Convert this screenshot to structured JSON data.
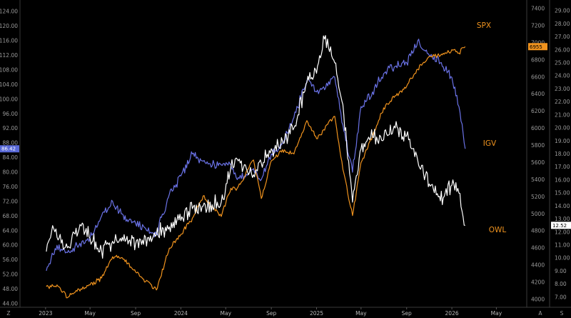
{
  "chart_data": {
    "type": "line",
    "title": "",
    "xlabel": "",
    "ylabel": "",
    "x_ticks": [
      "2023",
      "May",
      "Sep",
      "2024",
      "May",
      "Sep",
      "2025",
      "May",
      "Sep",
      "2026",
      "May"
    ],
    "x_tick_dates": [
      "2023-01-01",
      "2023-05-01",
      "2023-09-01",
      "2024-01-01",
      "2024-05-01",
      "2024-09-01",
      "2025-01-01",
      "2025-05-01",
      "2025-09-01",
      "2026-01-01",
      "2026-05-01"
    ],
    "axis_corner_labels": {
      "left": "Z",
      "right_a": "A",
      "right_b": "S"
    },
    "left_axis": {
      "range": [
        44,
        126
      ],
      "ticks": [
        "124.00",
        "120.00",
        "116.00",
        "112.00",
        "108.00",
        "104.00",
        "100.00",
        "96.00",
        "92.00",
        "88.00",
        "84.00",
        "80.00",
        "76.00",
        "72.00",
        "68.00",
        "64.00",
        "60.00",
        "56.00",
        "52.00",
        "48.00",
        "44.00"
      ],
      "last_value": "86.42"
    },
    "mid_axis": {
      "range": [
        3950,
        7450
      ],
      "ticks": [
        "7400",
        "7200",
        "7000",
        "6800",
        "6600",
        "6400",
        "6200",
        "6000",
        "5800",
        "5600",
        "5400",
        "5200",
        "5000",
        "4800",
        "4600",
        "4400",
        "4200",
        "4000"
      ],
      "last_value": "6955"
    },
    "right_axis": {
      "range": [
        6.5,
        29.5
      ],
      "ticks": [
        "29.00",
        "28.00",
        "27.00",
        "26.00",
        "25.00",
        "24.00",
        "23.00",
        "22.00",
        "21.00",
        "20.00",
        "19.00",
        "18.00",
        "17.00",
        "16.00",
        "15.00",
        "14.00",
        "13.00",
        "12.00",
        "11.00",
        "10.00",
        "9.00",
        "8.00",
        "7.00"
      ],
      "last_value": "12.52"
    },
    "series": [
      {
        "name": "SPX",
        "color": "#f0931e",
        "axis": "mid",
        "points": [
          [
            "2023-01-03",
            4150
          ],
          [
            "2023-02-01",
            4170
          ],
          [
            "2023-03-01",
            4020
          ],
          [
            "2023-04-01",
            4120
          ],
          [
            "2023-05-01",
            4170
          ],
          [
            "2023-06-01",
            4250
          ],
          [
            "2023-07-01",
            4500
          ],
          [
            "2023-08-01",
            4470
          ],
          [
            "2023-09-01",
            4320
          ],
          [
            "2023-10-27",
            4110
          ],
          [
            "2023-12-01",
            4600
          ],
          [
            "2024-01-01",
            4760
          ],
          [
            "2024-02-01",
            4950
          ],
          [
            "2024-03-01",
            5210
          ],
          [
            "2024-04-19",
            4970
          ],
          [
            "2024-05-15",
            5300
          ],
          [
            "2024-06-01",
            5300
          ],
          [
            "2024-07-15",
            5630
          ],
          [
            "2024-08-05",
            5180
          ],
          [
            "2024-09-01",
            5620
          ],
          [
            "2024-10-01",
            5750
          ],
          [
            "2024-11-01",
            5700
          ],
          [
            "2024-12-06",
            6090
          ],
          [
            "2025-01-01",
            5880
          ],
          [
            "2025-02-19",
            6140
          ],
          [
            "2025-03-13",
            5520
          ],
          [
            "2025-04-08",
            4980
          ],
          [
            "2025-05-01",
            5600
          ],
          [
            "2025-06-01",
            5910
          ],
          [
            "2025-07-01",
            6240
          ],
          [
            "2025-08-01",
            6380
          ],
          [
            "2025-09-01",
            6490
          ],
          [
            "2025-10-01",
            6690
          ],
          [
            "2025-11-01",
            6840
          ],
          [
            "2025-12-01",
            6850
          ],
          [
            "2026-01-01",
            6920
          ],
          [
            "2026-01-20",
            6880
          ],
          [
            "2026-02-06",
            6955
          ]
        ]
      },
      {
        "name": "IGV",
        "color": "#6a72e6",
        "axis": "left",
        "points": [
          [
            "2023-01-03",
            53
          ],
          [
            "2023-02-01",
            60
          ],
          [
            "2023-03-01",
            58
          ],
          [
            "2023-04-01",
            60
          ],
          [
            "2023-05-01",
            62
          ],
          [
            "2023-06-01",
            68
          ],
          [
            "2023-07-01",
            72
          ],
          [
            "2023-08-01",
            67
          ],
          [
            "2023-09-01",
            66
          ],
          [
            "2023-10-27",
            63
          ],
          [
            "2023-12-01",
            74
          ],
          [
            "2024-01-01",
            79
          ],
          [
            "2024-02-01",
            85
          ],
          [
            "2024-03-01",
            83
          ],
          [
            "2024-04-19",
            82
          ],
          [
            "2024-05-15",
            82
          ],
          [
            "2024-06-01",
            78
          ],
          [
            "2024-07-15",
            81
          ],
          [
            "2024-08-05",
            78
          ],
          [
            "2024-09-01",
            85
          ],
          [
            "2024-10-01",
            88
          ],
          [
            "2024-11-01",
            95
          ],
          [
            "2024-12-06",
            105
          ],
          [
            "2025-01-01",
            102
          ],
          [
            "2025-02-19",
            106
          ],
          [
            "2025-03-13",
            93
          ],
          [
            "2025-04-08",
            80
          ],
          [
            "2025-05-01",
            98
          ],
          [
            "2025-06-01",
            102
          ],
          [
            "2025-07-01",
            107
          ],
          [
            "2025-08-01",
            109
          ],
          [
            "2025-09-01",
            110
          ],
          [
            "2025-10-01",
            116
          ],
          [
            "2025-11-01",
            112
          ],
          [
            "2025-12-01",
            110
          ],
          [
            "2026-01-01",
            106
          ],
          [
            "2026-01-20",
            98
          ],
          [
            "2026-02-06",
            86.42
          ]
        ]
      },
      {
        "name": "OWL",
        "color": "#ffffff",
        "axis": "right",
        "points": [
          [
            "2023-01-03",
            10.5
          ],
          [
            "2023-01-20",
            12.5
          ],
          [
            "2023-02-01",
            11.6
          ],
          [
            "2023-03-01",
            10.8
          ],
          [
            "2023-04-01",
            12.2
          ],
          [
            "2023-04-10",
            12.7
          ],
          [
            "2023-05-01",
            11.5
          ],
          [
            "2023-06-01",
            10.6
          ],
          [
            "2023-07-01",
            11.3
          ],
          [
            "2023-08-01",
            11.8
          ],
          [
            "2023-09-01",
            11.1
          ],
          [
            "2023-10-27",
            11.8
          ],
          [
            "2023-12-01",
            12.4
          ],
          [
            "2024-01-01",
            12.9
          ],
          [
            "2024-02-01",
            13.8
          ],
          [
            "2024-03-01",
            14.0
          ],
          [
            "2024-04-19",
            14.3
          ],
          [
            "2024-05-15",
            17.0
          ],
          [
            "2024-06-01",
            17.6
          ],
          [
            "2024-07-15",
            16.4
          ],
          [
            "2024-08-05",
            17.3
          ],
          [
            "2024-09-01",
            18.4
          ],
          [
            "2024-10-01",
            19.0
          ],
          [
            "2024-11-01",
            20.0
          ],
          [
            "2024-12-06",
            23.5
          ],
          [
            "2025-01-01",
            24.2
          ],
          [
            "2025-01-25",
            27.1
          ],
          [
            "2025-02-19",
            25.0
          ],
          [
            "2025-03-13",
            21.8
          ],
          [
            "2025-04-08",
            14.3
          ],
          [
            "2025-05-01",
            18.4
          ],
          [
            "2025-06-01",
            19.3
          ],
          [
            "2025-07-01",
            19.1
          ],
          [
            "2025-08-01",
            20.0
          ],
          [
            "2025-09-01",
            19.4
          ],
          [
            "2025-10-01",
            17.5
          ],
          [
            "2025-11-01",
            15.7
          ],
          [
            "2025-12-01",
            14.4
          ],
          [
            "2026-01-01",
            15.6
          ],
          [
            "2026-01-20",
            15.0
          ],
          [
            "2026-02-06",
            12.52
          ]
        ]
      }
    ]
  }
}
